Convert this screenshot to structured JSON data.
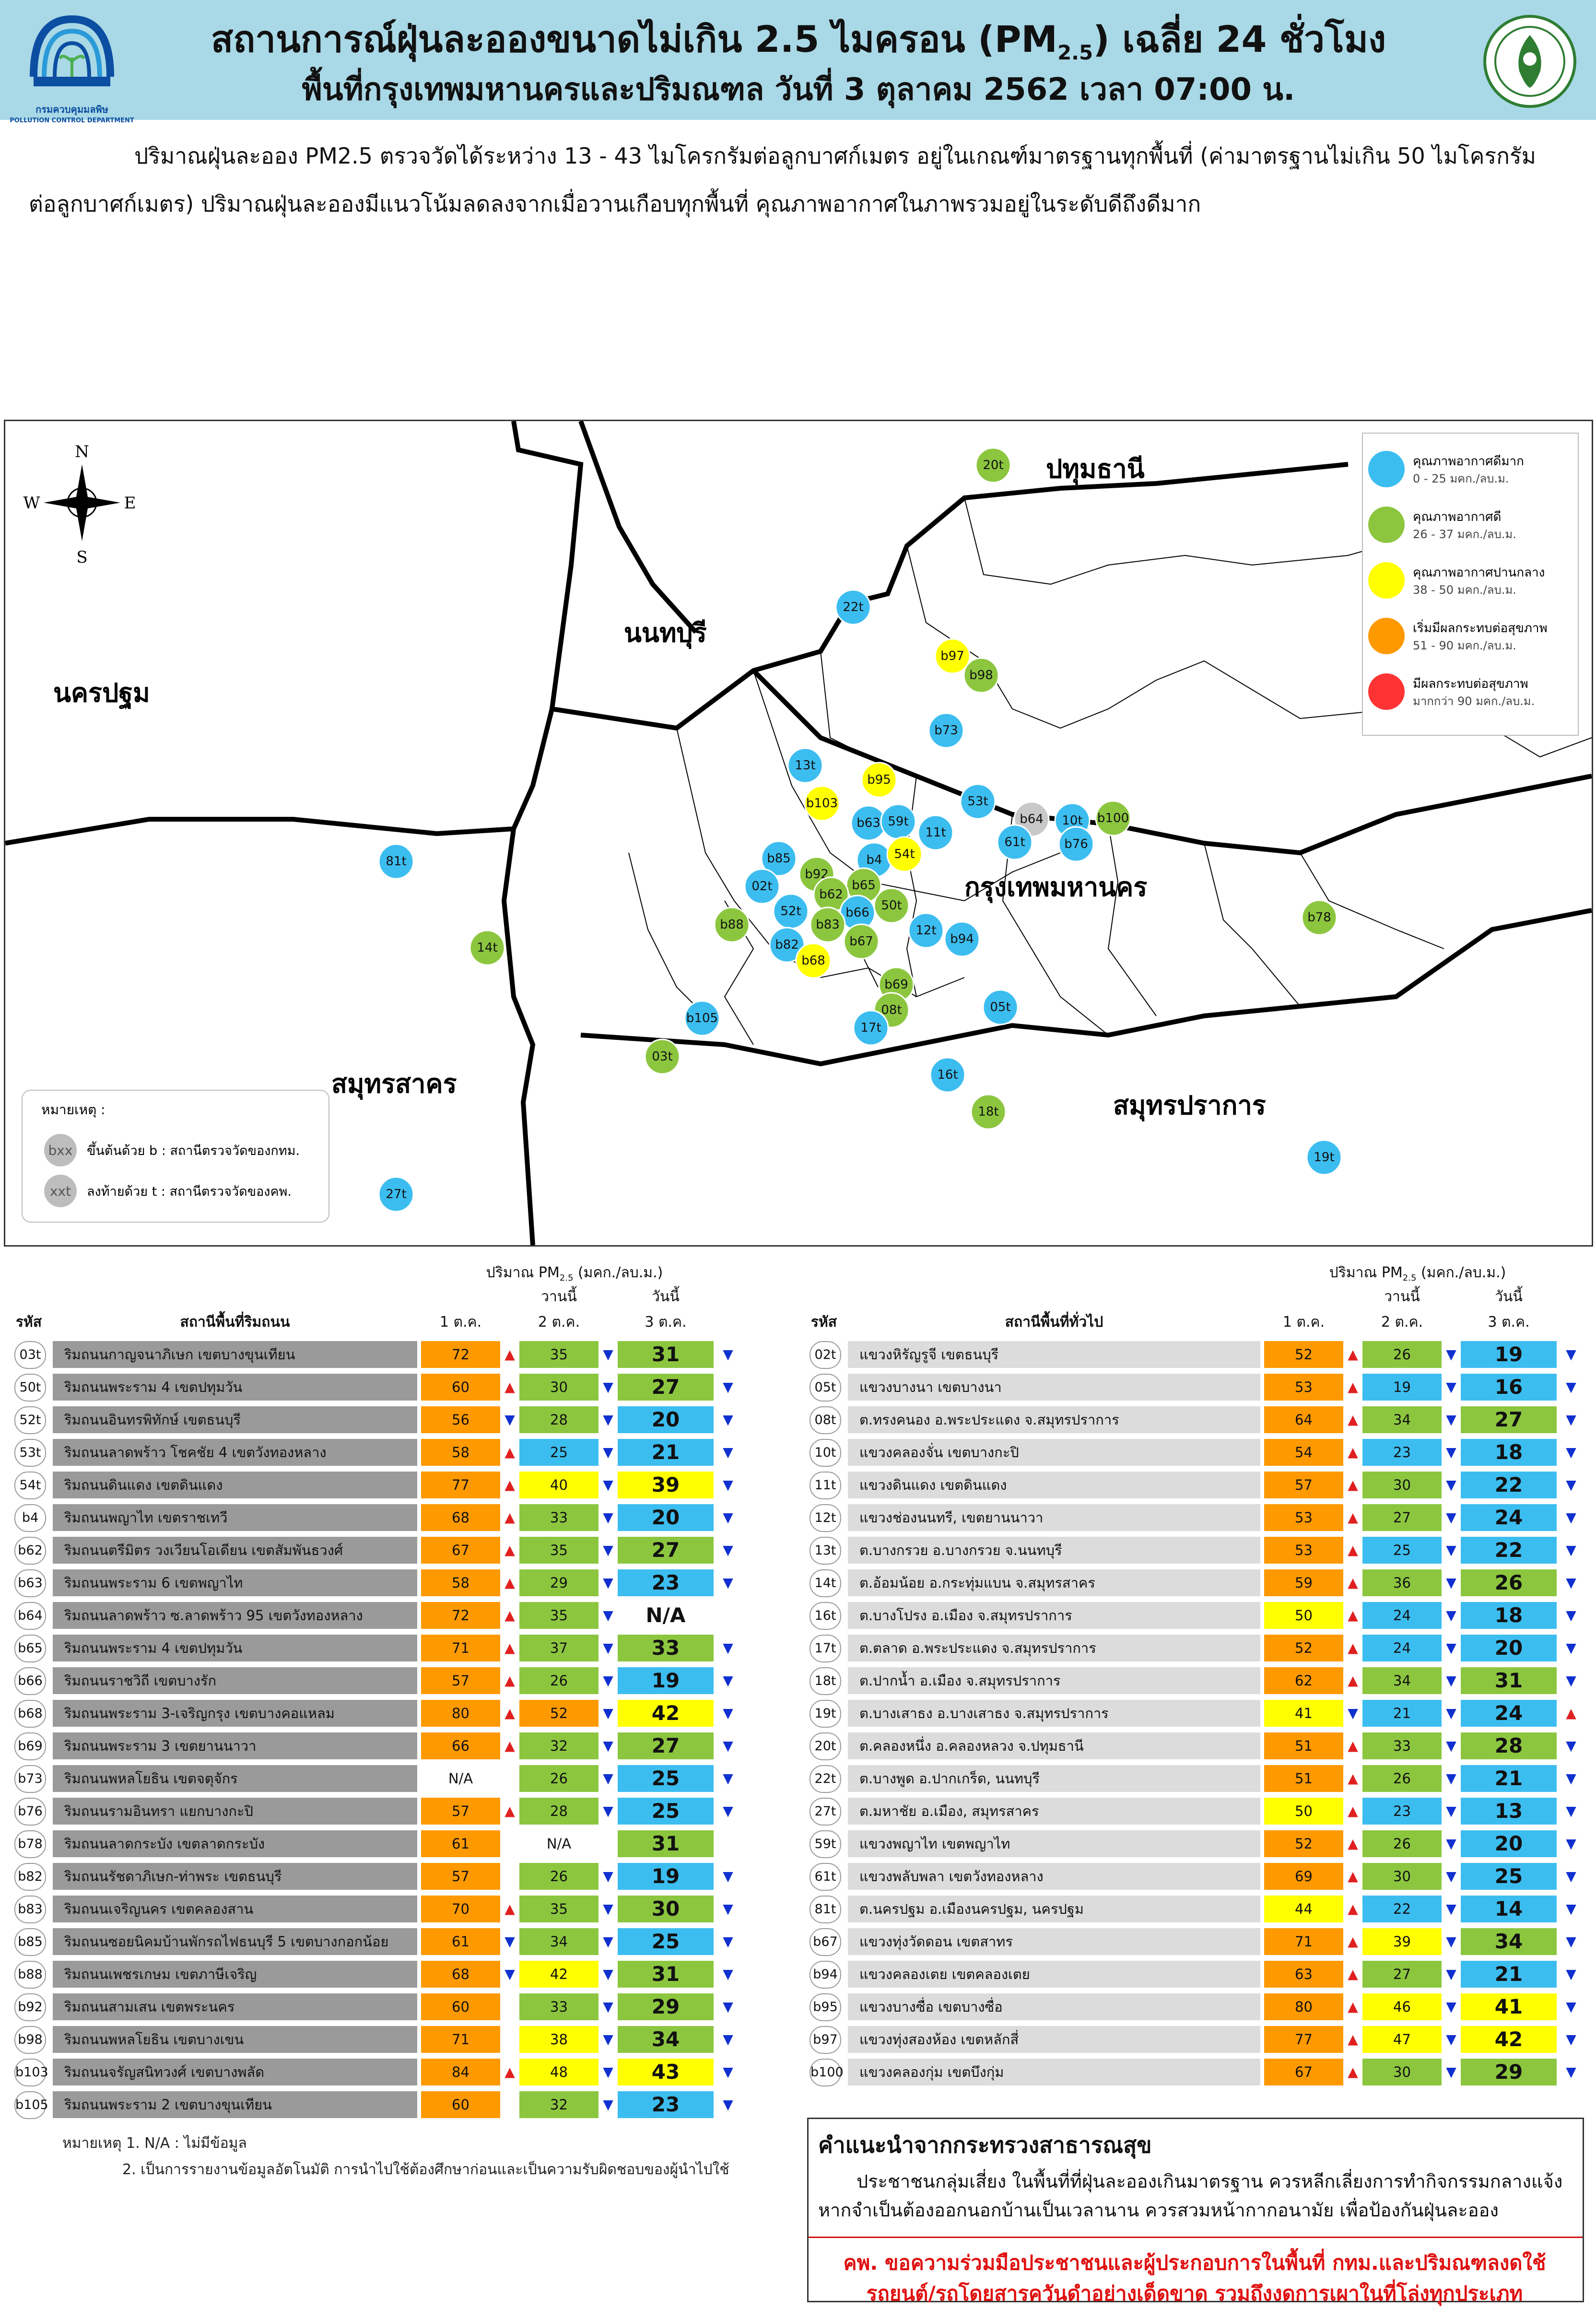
{
  "header": {
    "title_main": "สถานการณ์ฝุ่นละอองขนาดไม่เกิน 2.5 ไมครอน (PM",
    "title_sub": "2.5",
    "title_end": ") เฉลี่ย 24 ชั่วโมง",
    "title_line2": "พื้นที่กรุงเทพมหานครและปริมณฑล วันที่ 3 ตุลาคม 2562 เวลา 07:00 น.",
    "pcd_caption_th": "กรมควบคุมมลพิษ",
    "pcd_caption_en": "POLLUTION CONTROL DEPARTMENT"
  },
  "summary": "ปริมาณฝุ่นละออง PM2.5 ตรวจวัดได้ระหว่าง 13 - 43 ไมโครกรัมต่อลูกบาศก์เมตร อยู่ในเกณฑ์มาตรฐานทุกพื้นที่ (ค่ามาตรฐานไม่เกิน 50 ไมโครกรัมต่อลูกบาศก์เมตร) ปริมาณฝุ่นละอองมีแนวโน้มลดลงจากเมื่อวานเกือบทุกพื้นที่ คุณภาพอากาศในภาพรวมอยู่ในระดับดีถึงดีมาก",
  "colors": {
    "very_good": "#3cbdf0",
    "good": "#8cc63f",
    "moderate": "#ffff00",
    "starting_effect": "#ff9900",
    "unhealthy": "#ff3333",
    "header_bg": "#a9d8e6"
  },
  "map": {
    "compass": {
      "n": "N",
      "s": "S",
      "e": "E",
      "w": "W"
    },
    "provinces": {
      "pathum": "ปทุมธานี",
      "nonthaburi": "นนทบุรี",
      "nakhonpathom": "นครปฐม",
      "bangkok": "กรุงเทพมหานคร",
      "samutsakhon": "สมุทรสาคร",
      "samutprakan": "สมุทรปราการ"
    },
    "legend": [
      {
        "label": "คุณภาพอากาศดีมาก",
        "range": "0 - 25 มคก./ลบ.ม.",
        "color_key": "very_good"
      },
      {
        "label": "คุณภาพอากาศดี",
        "range": "26 - 37 มคก./ลบ.ม.",
        "color_key": "good"
      },
      {
        "label": "คุณภาพอากาศปานกลาง",
        "range": "38 - 50 มคก./ลบ.ม.",
        "color_key": "moderate"
      },
      {
        "label": "เริ่มมีผลกระทบต่อสุขภาพ",
        "range": "51 - 90 มคก./ลบ.ม.",
        "color_key": "starting_effect"
      },
      {
        "label": "มีผลกระทบต่อสุขภาพ",
        "range": "มากกว่า 90 มคก./ลบ.ม.",
        "color_key": "unhealthy"
      }
    ],
    "note_title": "หมายเหตุ :",
    "note_b_badge": "bxx",
    "note_b": "ขึ้นต้นด้วย b : สถานีตรวจวัดของกทม.",
    "note_t_badge": "xxt",
    "note_t": "ลงท้ายด้วย t : สถานีตรวจวัดของคพ.",
    "stations": [
      {
        "id": "20t",
        "level": "good"
      },
      {
        "id": "22t",
        "level": "very_good"
      },
      {
        "id": "b97",
        "level": "moderate"
      },
      {
        "id": "b98",
        "level": "good"
      },
      {
        "id": "b73",
        "level": "very_good"
      },
      {
        "id": "13t",
        "level": "very_good"
      },
      {
        "id": "b95",
        "level": "moderate"
      },
      {
        "id": "b103",
        "level": "moderate"
      },
      {
        "id": "53t",
        "level": "very_good"
      },
      {
        "id": "b64",
        "level": "na"
      },
      {
        "id": "10t",
        "level": "very_good"
      },
      {
        "id": "b100",
        "level": "good"
      },
      {
        "id": "b63",
        "level": "very_good"
      },
      {
        "id": "59t",
        "level": "very_good"
      },
      {
        "id": "11t",
        "level": "very_good"
      },
      {
        "id": "61t",
        "level": "very_good"
      },
      {
        "id": "b76",
        "level": "very_good"
      },
      {
        "id": "b85",
        "level": "very_good"
      },
      {
        "id": "b4",
        "level": "very_good"
      },
      {
        "id": "54t",
        "level": "moderate"
      },
      {
        "id": "81t",
        "level": "very_good"
      },
      {
        "id": "b92",
        "level": "good"
      },
      {
        "id": "02t",
        "level": "very_good"
      },
      {
        "id": "b65",
        "level": "good"
      },
      {
        "id": "b62",
        "level": "good"
      },
      {
        "id": "50t",
        "level": "good"
      },
      {
        "id": "52t",
        "level": "very_good"
      },
      {
        "id": "b66",
        "level": "very_good"
      },
      {
        "id": "b88",
        "level": "good"
      },
      {
        "id": "b83",
        "level": "good"
      },
      {
        "id": "12t",
        "level": "very_good"
      },
      {
        "id": "b94",
        "level": "very_good"
      },
      {
        "id": "b78",
        "level": "good"
      },
      {
        "id": "14t",
        "level": "good"
      },
      {
        "id": "b82",
        "level": "very_good"
      },
      {
        "id": "b67",
        "level": "good"
      },
      {
        "id": "b68",
        "level": "moderate"
      },
      {
        "id": "b69",
        "level": "good"
      },
      {
        "id": "b105",
        "level": "very_good"
      },
      {
        "id": "08t",
        "level": "good"
      },
      {
        "id": "05t",
        "level": "very_good"
      },
      {
        "id": "17t",
        "level": "very_good"
      },
      {
        "id": "03t",
        "level": "good"
      },
      {
        "id": "16t",
        "level": "very_good"
      },
      {
        "id": "18t",
        "level": "good"
      },
      {
        "id": "19t",
        "level": "very_good"
      },
      {
        "id": "27t",
        "level": "very_good"
      }
    ]
  },
  "tables": {
    "pm_header": "ปริมาณ PM",
    "pm_header_sub": "2.5",
    "pm_header_unit": " (มคก./ลบ.ม.)",
    "col_yesterday": "วานนี้",
    "col_today": "วันนี้",
    "col_code": "รหัส",
    "col_d1": "1 ต.ค.",
    "col_d2": "2 ต.ค.",
    "col_d3": "3 ต.ค.",
    "left": {
      "col_station": "สถานีพื้นที่ริมถนน",
      "rows": [
        {
          "code": "03t",
          "name": "ริมถนนกาญจนาภิเษก เขตบางขุนเทียน",
          "d1": "72",
          "a1": "up",
          "d2": "35",
          "a2": "down",
          "d3": "31",
          "a3": "down"
        },
        {
          "code": "50t",
          "name": "ริมถนนพระราม 4 เขตปทุมวัน",
          "d1": "60",
          "a1": "up",
          "d2": "30",
          "a2": "down",
          "d3": "27",
          "a3": "down"
        },
        {
          "code": "52t",
          "name": "ริมถนนอินทรพิทักษ์ เขตธนบุรี",
          "d1": "56",
          "a1": "down",
          "d2": "28",
          "a2": "down",
          "d3": "20",
          "a3": "down"
        },
        {
          "code": "53t",
          "name": "ริมถนนลาดพร้าว โชคชัย 4 เขตวังทองหลาง",
          "d1": "58",
          "a1": "up",
          "d2": "25",
          "a2": "down",
          "d3": "21",
          "a3": "down"
        },
        {
          "code": "54t",
          "name": "ริมถนนดินแดง เขตดินแดง",
          "d1": "77",
          "a1": "up",
          "d2": "40",
          "a2": "down",
          "d3": "39",
          "a3": "down"
        },
        {
          "code": "b4",
          "name": "ริมถนนพญาไท เขตราชเทวี",
          "d1": "68",
          "a1": "up",
          "d2": "33",
          "a2": "down",
          "d3": "20",
          "a3": "down"
        },
        {
          "code": "b62",
          "name": "ริมถนนตรีมิตร วงเวียนโอเดียน เขตสัมพันธวงศ์",
          "d1": "67",
          "a1": "up",
          "d2": "35",
          "a2": "down",
          "d3": "27",
          "a3": "down"
        },
        {
          "code": "b63",
          "name": "ริมถนนพระราม 6 เขตพญาไท",
          "d1": "58",
          "a1": "up",
          "d2": "29",
          "a2": "down",
          "d3": "23",
          "a3": "down"
        },
        {
          "code": "b64",
          "name": "ริมถนนลาดพร้าว ซ.ลาดพร้าว 95 เขตวังทองหลาง",
          "d1": "72",
          "a1": "up",
          "d2": "35",
          "a2": "down",
          "d3": "N/A",
          "a3": ""
        },
        {
          "code": "b65",
          "name": "ริมถนนพระราม 4 เขตปทุมวัน",
          "d1": "71",
          "a1": "up",
          "d2": "37",
          "a2": "down",
          "d3": "33",
          "a3": "down"
        },
        {
          "code": "b66",
          "name": "ริมถนนราชวิถี เขตบางรัก",
          "d1": "57",
          "a1": "up",
          "d2": "26",
          "a2": "down",
          "d3": "19",
          "a3": "down"
        },
        {
          "code": "b68",
          "name": "ริมถนนพระราม 3-เจริญกรุง เขตบางคอแหลม",
          "d1": "80",
          "a1": "up",
          "d2": "52",
          "a2": "down",
          "d3": "42",
          "a3": "down"
        },
        {
          "code": "b69",
          "name": "ริมถนนพระราม 3 เขตยานนาวา",
          "d1": "66",
          "a1": "up",
          "d2": "32",
          "a2": "down",
          "d3": "27",
          "a3": "down"
        },
        {
          "code": "b73",
          "name": "ริมถนนพหลโยธิน เขตจตุจักร",
          "d1": "N/A",
          "a1": "",
          "d2": "26",
          "a2": "down",
          "d3": "25",
          "a3": "down"
        },
        {
          "code": "b76",
          "name": "ริมถนนรามอินทรา แยกบางกะปิ",
          "d1": "57",
          "a1": "up",
          "d2": "28",
          "a2": "down",
          "d3": "25",
          "a3": "down"
        },
        {
          "code": "b78",
          "name": "ริมถนนลาดกระบัง เขตลาดกระบัง",
          "d1": "61",
          "a1": "",
          "d2": "N/A",
          "a2": "",
          "d3": "31",
          "a3": ""
        },
        {
          "code": "b82",
          "name": "ริมถนนรัชดาภิเษก-ท่าพระ เขตธนบุรี",
          "d1": "57",
          "a1": "",
          "d2": "26",
          "a2": "down",
          "d3": "19",
          "a3": "down"
        },
        {
          "code": "b83",
          "name": "ริมถนนเจริญนคร เขตคลองสาน",
          "d1": "70",
          "a1": "up",
          "d2": "35",
          "a2": "down",
          "d3": "30",
          "a3": "down"
        },
        {
          "code": "b85",
          "name": "ริมถนนซอยนิคมบ้านพักรถไฟธนบุรี 5 เขตบางกอกน้อย",
          "d1": "61",
          "a1": "down",
          "d2": "34",
          "a2": "down",
          "d3": "25",
          "a3": "down"
        },
        {
          "code": "b88",
          "name": "ริมถนนเพชรเกษม เขตภาษีเจริญ",
          "d1": "68",
          "a1": "down",
          "d2": "42",
          "a2": "down",
          "d3": "31",
          "a3": "down"
        },
        {
          "code": "b92",
          "name": "ริมถนนสามเสน เขตพระนคร",
          "d1": "60",
          "a1": "",
          "d2": "33",
          "a2": "down",
          "d3": "29",
          "a3": "down"
        },
        {
          "code": "b98",
          "name": "ริมถนนพหลโยธิน เขตบางเขน",
          "d1": "71",
          "a1": "",
          "d2": "38",
          "a2": "down",
          "d3": "34",
          "a3": "down"
        },
        {
          "code": "b103",
          "name": "ริมถนนจรัญสนิทวงศ์ เขตบางพลัด",
          "d1": "84",
          "a1": "up",
          "d2": "48",
          "a2": "down",
          "d3": "43",
          "a3": "down"
        },
        {
          "code": "b105",
          "name": "ริมถนนพระราม 2 เขตบางขุนเทียน",
          "d1": "60",
          "a1": "",
          "d2": "32",
          "a2": "down",
          "d3": "23",
          "a3": "down"
        }
      ]
    },
    "right": {
      "col_station": "สถานีพื้นที่ทั่วไป",
      "rows": [
        {
          "code": "02t",
          "name": "แขวงหิรัญรูจี เขตธนบุรี",
          "d1": "52",
          "a1": "up",
          "d2": "26",
          "a2": "down",
          "d3": "19",
          "a3": "down"
        },
        {
          "code": "05t",
          "name": "แขวงบางนา เขตบางนา",
          "d1": "53",
          "a1": "up",
          "d2": "19",
          "a2": "down",
          "d3": "16",
          "a3": "down"
        },
        {
          "code": "08t",
          "name": "ต.ทรงคนอง อ.พระประแดง จ.สมุทรปราการ",
          "d1": "64",
          "a1": "up",
          "d2": "34",
          "a2": "down",
          "d3": "27",
          "a3": "down"
        },
        {
          "code": "10t",
          "name": "แขวงคลองจั่น เขตบางกะปิ",
          "d1": "54",
          "a1": "up",
          "d2": "23",
          "a2": "down",
          "d3": "18",
          "a3": "down"
        },
        {
          "code": "11t",
          "name": "แขวงดินแดง เขตดินแดง",
          "d1": "57",
          "a1": "up",
          "d2": "30",
          "a2": "down",
          "d3": "22",
          "a3": "down"
        },
        {
          "code": "12t",
          "name": "แขวงช่องนนทรี, เขตยานนาวา",
          "d1": "53",
          "a1": "up",
          "d2": "27",
          "a2": "down",
          "d3": "24",
          "a3": "down"
        },
        {
          "code": "13t",
          "name": "ต.บางกรวย อ.บางกรวย จ.นนทบุรี",
          "d1": "53",
          "a1": "up",
          "d2": "25",
          "a2": "down",
          "d3": "22",
          "a3": "down"
        },
        {
          "code": "14t",
          "name": "ต.อ้อมน้อย อ.กระทุ่มแบน จ.สมุทรสาคร",
          "d1": "59",
          "a1": "up",
          "d2": "36",
          "a2": "down",
          "d3": "26",
          "a3": "down"
        },
        {
          "code": "16t",
          "name": "ต.บางโปรง อ.เมือง จ.สมุทรปราการ",
          "d1": "50",
          "a1": "up",
          "d2": "24",
          "a2": "down",
          "d3": "18",
          "a3": "down"
        },
        {
          "code": "17t",
          "name": "ต.ตลาด อ.พระประแดง จ.สมุทรปราการ",
          "d1": "52",
          "a1": "up",
          "d2": "24",
          "a2": "down",
          "d3": "20",
          "a3": "down"
        },
        {
          "code": "18t",
          "name": "ต.ปากน้ำ อ.เมือง จ.สมุทรปราการ",
          "d1": "62",
          "a1": "up",
          "d2": "34",
          "a2": "down",
          "d3": "31",
          "a3": "down"
        },
        {
          "code": "19t",
          "name": "ต.บางเสาธง อ.บางเสาธง จ.สมุทรปราการ",
          "d1": "41",
          "a1": "down",
          "d2": "21",
          "a2": "down",
          "d3": "24",
          "a3": "up"
        },
        {
          "code": "20t",
          "name": "ต.คลองหนึ่ง อ.คลองหลวง จ.ปทุมธานี",
          "d1": "51",
          "a1": "up",
          "d2": "33",
          "a2": "down",
          "d3": "28",
          "a3": "down"
        },
        {
          "code": "22t",
          "name": "ต.บางพูด อ.ปากเกร็ด, นนทบุรี",
          "d1": "51",
          "a1": "up",
          "d2": "26",
          "a2": "down",
          "d3": "21",
          "a3": "down"
        },
        {
          "code": "27t",
          "name": "ต.มหาชัย อ.เมือง, สมุทรสาคร",
          "d1": "50",
          "a1": "up",
          "d2": "23",
          "a2": "down",
          "d3": "13",
          "a3": "down"
        },
        {
          "code": "59t",
          "name": "แขวงพญาไท เขตพญาไท",
          "d1": "52",
          "a1": "up",
          "d2": "26",
          "a2": "down",
          "d3": "20",
          "a3": "down"
        },
        {
          "code": "61t",
          "name": "แขวงพลับพลา เขตวังทองหลาง",
          "d1": "69",
          "a1": "up",
          "d2": "30",
          "a2": "down",
          "d3": "25",
          "a3": "down"
        },
        {
          "code": "81t",
          "name": "ต.นครปฐม อ.เมืองนครปฐม, นครปฐม",
          "d1": "44",
          "a1": "up",
          "d2": "22",
          "a2": "down",
          "d3": "14",
          "a3": "down"
        },
        {
          "code": "b67",
          "name": "แขวงทุ่งวัดดอน เขตสาทร",
          "d1": "71",
          "a1": "up",
          "d2": "39",
          "a2": "down",
          "d3": "34",
          "a3": "down"
        },
        {
          "code": "b94",
          "name": "แขวงคลองเตย เขตคลองเตย",
          "d1": "63",
          "a1": "up",
          "d2": "27",
          "a2": "down",
          "d3": "21",
          "a3": "down"
        },
        {
          "code": "b95",
          "name": "แขวงบางซื่อ เขตบางซื่อ",
          "d1": "80",
          "a1": "up",
          "d2": "46",
          "a2": "down",
          "d3": "41",
          "a3": "down"
        },
        {
          "code": "b97",
          "name": "แขวงทุ่งสองห้อง เขตหลักสี่",
          "d1": "77",
          "a1": "up",
          "d2": "47",
          "a2": "down",
          "d3": "42",
          "a3": "down"
        },
        {
          "code": "b100",
          "name": "แขวงคลองกุ่ม เขตบึงกุ่ม",
          "d1": "67",
          "a1": "up",
          "d2": "30",
          "a2": "down",
          "d3": "29",
          "a3": "down"
        }
      ]
    },
    "notes": {
      "line1": "หมายเหตุ 1. N/A : ไม่มีข้อมูล",
      "line2": "2. เป็นการรายงานข้อมูลอัตโนมัติ การนำไปใช้ต้องศึกษาก่อนและเป็นความรับผิดชอบของผู้นำไปใช้"
    }
  },
  "advice": {
    "title": "คำแนะนำจากกระทรวงสาธารณสุข",
    "body": "ประชาชนกลุ่มเสี่ยง ในพื้นที่ที่ฝุ่นละอองเกินมาตรฐาน ควรหลีกเลี่ยงการทำกิจกรรมกลางแจ้ง หากจำเป็นต้องออกนอกบ้านเป็นเวลานาน ควรสวมหน้ากากอนามัย เพื่อป้องกันฝุ่นละออง",
    "red": "คพ. ขอความร่วมมือประชาชนและผู้ประกอบการในพื้นที่ กทม.และปริมณฑลงดใช้รถยนต์/รถโดยสารควันดำอย่างเด็ดขาด รวมถึงงดการเผาในที่โล่งทุกประเภท"
  }
}
